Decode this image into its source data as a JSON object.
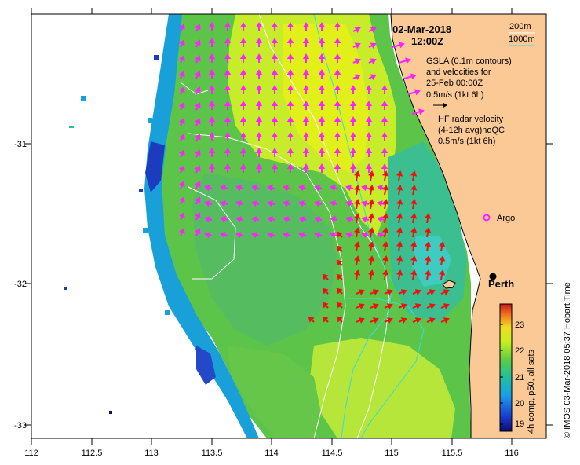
{
  "title": {
    "date": "02-Mar-2018",
    "time": "12:00Z"
  },
  "depth_legend": {
    "shallow": "200m",
    "deep": "1000m"
  },
  "gsla_note": [
    "GSLA (0.1m contours)",
    "and velocities for",
    "25-Feb 00:00Z",
    "0.5m/s (1kt 6h)"
  ],
  "hf_note": [
    "HF radar velocity",
    "(4-12h avg)noQC",
    "0.5m/s (1kt 6h)"
  ],
  "argo_label": "Argo",
  "city_label": "Perth",
  "colorbar": {
    "label": "4h comp, p50, all sats",
    "ticks": [
      "23",
      "22",
      "21",
      "20",
      "19"
    ],
    "range": [
      18.8,
      23.6
    ]
  },
  "credit": "© IMOS 03-Mar-2018 05:37 Hobart Time",
  "axes": {
    "x_ticks": [
      "112",
      "112.5",
      "113",
      "113.5",
      "114",
      "114.5",
      "115",
      "115.5",
      "116"
    ],
    "y_ticks": [
      "-31",
      "-32",
      "-33"
    ]
  },
  "colors": {
    "land": "#fbc996",
    "gsla_arrow": "#ff22ff",
    "hf_arrow": "#ee1111",
    "contour_200m": "#ffffff",
    "contour_1000m": "#33dddd"
  }
}
